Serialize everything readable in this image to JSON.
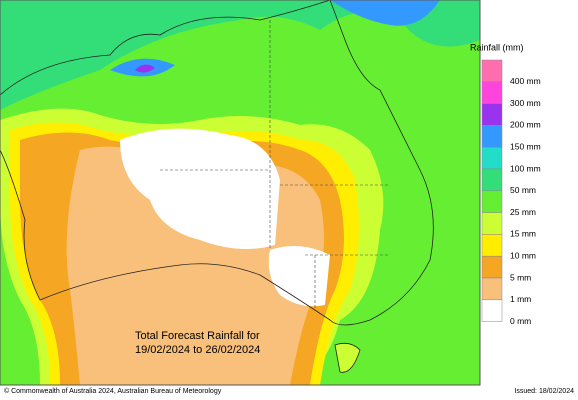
{
  "legend": {
    "title": "Rainfall (mm)",
    "items": [
      {
        "label": "400 mm",
        "color": "#ff6fb0"
      },
      {
        "label": "300 mm",
        "color": "#ff44dd"
      },
      {
        "label": "200 mm",
        "color": "#9933ee"
      },
      {
        "label": "150 mm",
        "color": "#3399ff"
      },
      {
        "label": "100 mm",
        "color": "#22ddc8"
      },
      {
        "label": "50 mm",
        "color": "#33dd77"
      },
      {
        "label": "25 mm",
        "color": "#66ee33"
      },
      {
        "label": "15 mm",
        "color": "#ccff33"
      },
      {
        "label": "10 mm",
        "color": "#ffee00"
      },
      {
        "label": "5 mm",
        "color": "#f5a623"
      },
      {
        "label": "1 mm",
        "color": "#f8c07a"
      },
      {
        "label": "0 mm",
        "color": "#ffffff"
      }
    ]
  },
  "caption": [
    "Total Forecast Rainfall for",
    "19/02/2024 to 26/02/2024"
  ],
  "footer": {
    "copyright": "© Commonwealth of Australia 2024, Australian Bureau of Meteorology",
    "issued": "Issued: 18/02/2024"
  }
}
